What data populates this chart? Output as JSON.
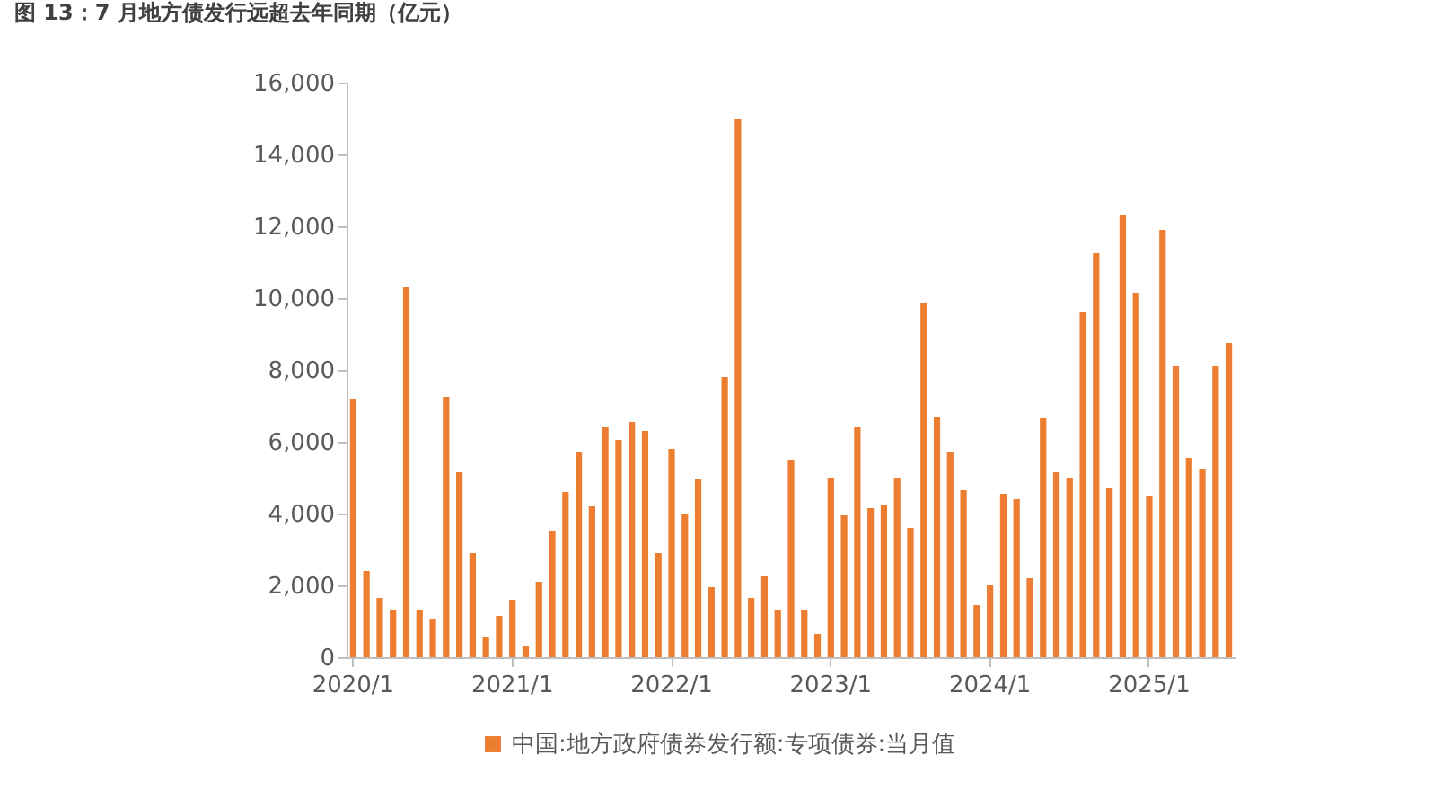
{
  "chart_data": {
    "type": "bar",
    "title": "图 13：7 月地方债发行远超去年同期（亿元）",
    "categories": [
      "2020/1",
      null,
      null,
      null,
      null,
      null,
      null,
      null,
      null,
      null,
      null,
      null,
      "2021/1",
      null,
      null,
      null,
      null,
      null,
      null,
      null,
      null,
      null,
      null,
      null,
      "2022/1",
      null,
      null,
      null,
      null,
      null,
      null,
      null,
      null,
      null,
      null,
      null,
      "2023/1",
      null,
      null,
      null,
      null,
      null,
      null,
      null,
      null,
      null,
      null,
      null,
      "2024/1",
      null,
      null,
      null,
      null,
      null,
      null,
      null,
      null,
      null,
      null,
      null,
      "2025/1",
      null,
      null,
      null,
      null,
      null,
      null
    ],
    "series": [
      {
        "name": "中国:地方政府债券发行额:专项债券:当月值",
        "color": "#ed7d31",
        "values": [
          7200,
          2400,
          1650,
          1300,
          10300,
          1300,
          1050,
          7250,
          5150,
          2900,
          550,
          1150,
          1600,
          300,
          2100,
          3500,
          4600,
          5700,
          4200,
          6400,
          6050,
          6550,
          6300,
          2900,
          5800,
          4000,
          4950,
          1950,
          7800,
          15000,
          1650,
          2250,
          1300,
          5500,
          1300,
          650,
          5000,
          3950,
          6400,
          4150,
          4250,
          5000,
          3600,
          9850,
          6700,
          5700,
          4650,
          1450,
          2000,
          4550,
          4400,
          2200,
          6650,
          5150,
          5000,
          9600,
          11250,
          4700,
          12300,
          10150,
          4500,
          11900,
          8100,
          5550,
          5250,
          8100,
          8750
        ]
      }
    ],
    "ylim": [
      0,
      16000
    ],
    "yticks": [
      0,
      {
        "value": 2000,
        "label": "2,000"
      },
      {
        "value": 4000,
        "label": "4,000"
      },
      {
        "value": 6000,
        "label": "6,000"
      },
      {
        "value": 8000,
        "label": "8,000"
      },
      {
        "value": 10000,
        "label": "10,000"
      },
      {
        "value": 12000,
        "label": "12,000"
      },
      {
        "value": 14000,
        "label": "14,000"
      },
      {
        "value": 16000,
        "label": "16,000"
      }
    ],
    "grid": false,
    "legend": "bottom"
  }
}
